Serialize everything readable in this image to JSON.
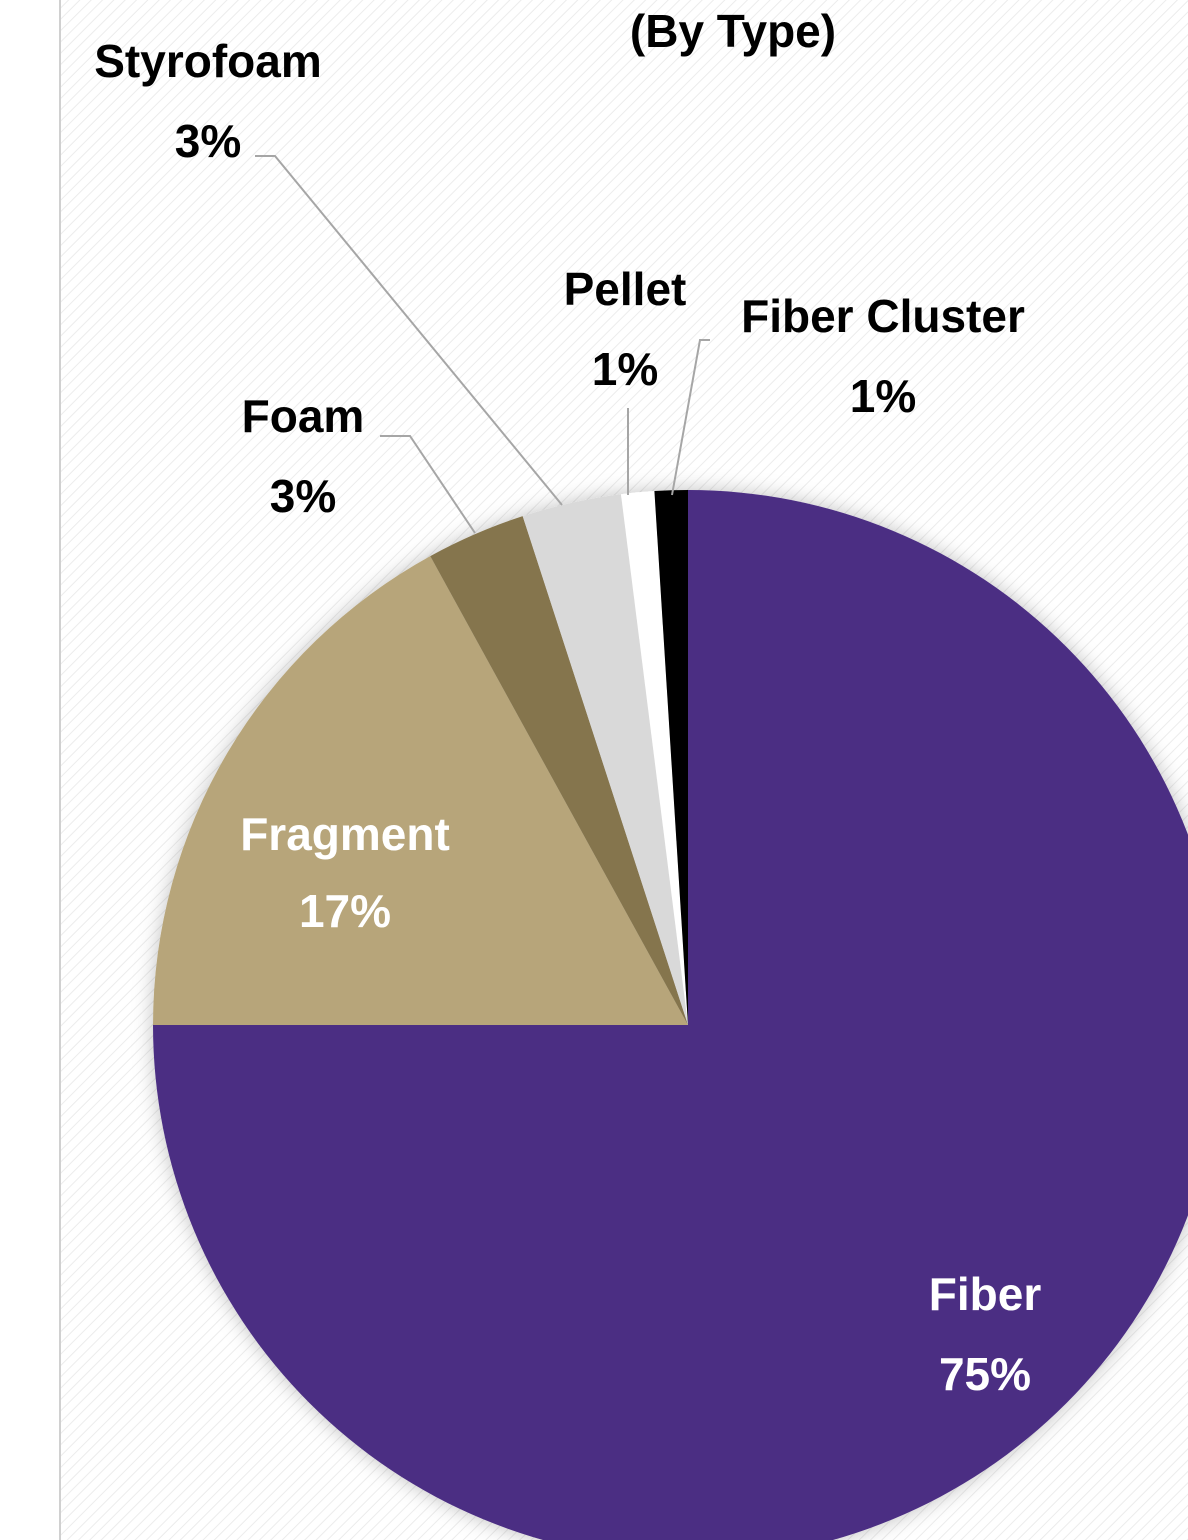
{
  "chart_data": {
    "type": "pie",
    "title": "(By Type)",
    "categories": [
      "Fiber",
      "Fragment",
      "Foam",
      "Styrofoam",
      "Pellet",
      "Fiber Cluster"
    ],
    "values": [
      75,
      17,
      3,
      3,
      1,
      1
    ],
    "value_labels": [
      "75%",
      "17%",
      "3%",
      "3%",
      "1%",
      "1%"
    ],
    "colors": [
      "#4b2e83",
      "#b7a57a",
      "#85754d",
      "#d9d9d9",
      "#ffffff",
      "#000000"
    ]
  }
}
